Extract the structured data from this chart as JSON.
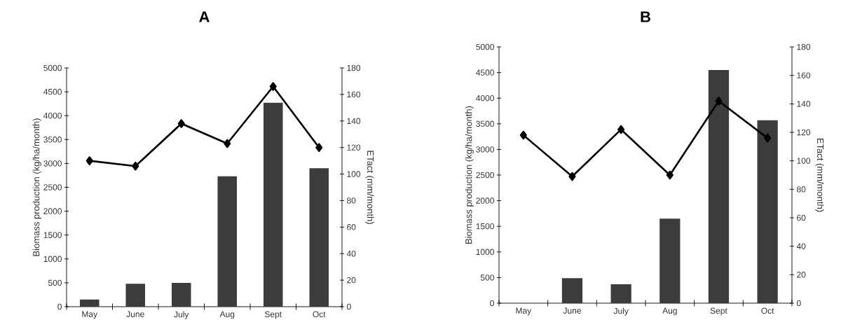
{
  "chart_data": [
    {
      "type": "bar",
      "title": "A",
      "ylabel": "Biomass production (kg/ha/month)",
      "y2label": "ETact (mm/month)",
      "categories": [
        "May",
        "June",
        "July",
        "Aug",
        "Sept",
        "Oct"
      ],
      "series": [
        {
          "type": "bar",
          "color": "#3c3c3c",
          "values": [
            150,
            480,
            500,
            2730,
            4270,
            2900
          ]
        },
        {
          "type": "line",
          "axis": "y2",
          "color": "#000000",
          "marker": "diamond",
          "values": [
            110,
            106,
            138,
            123,
            166,
            120
          ]
        }
      ],
      "ylim": [
        0,
        5000
      ],
      "yticks": [
        0,
        500,
        1000,
        1500,
        2000,
        2500,
        3000,
        3500,
        4000,
        4500,
        5000
      ],
      "y2lim": [
        0,
        180
      ],
      "y2ticks": [
        0,
        20,
        40,
        60,
        80,
        100,
        120,
        140,
        160,
        180
      ]
    },
    {
      "type": "bar",
      "title": "B",
      "ylabel": "Biomass production (kg/ha/month)",
      "y2label": "ETact (mm/month)",
      "categories": [
        "May",
        "June",
        "July",
        "Aug",
        "Sept",
        "Oct"
      ],
      "series": [
        {
          "type": "bar",
          "color": "#3c3c3c",
          "values": [
            0,
            490,
            370,
            1650,
            4550,
            3570
          ]
        },
        {
          "type": "line",
          "axis": "y2",
          "color": "#000000",
          "marker": "diamond",
          "values": [
            118,
            89,
            122,
            90,
            142,
            116
          ]
        }
      ],
      "ylim": [
        0,
        5000
      ],
      "yticks": [
        0,
        500,
        1000,
        1500,
        2000,
        2500,
        3000,
        3500,
        4000,
        4500,
        5000
      ],
      "y2lim": [
        0,
        180
      ],
      "y2ticks": [
        0,
        20,
        40,
        60,
        80,
        100,
        120,
        140,
        160,
        180
      ]
    }
  ]
}
